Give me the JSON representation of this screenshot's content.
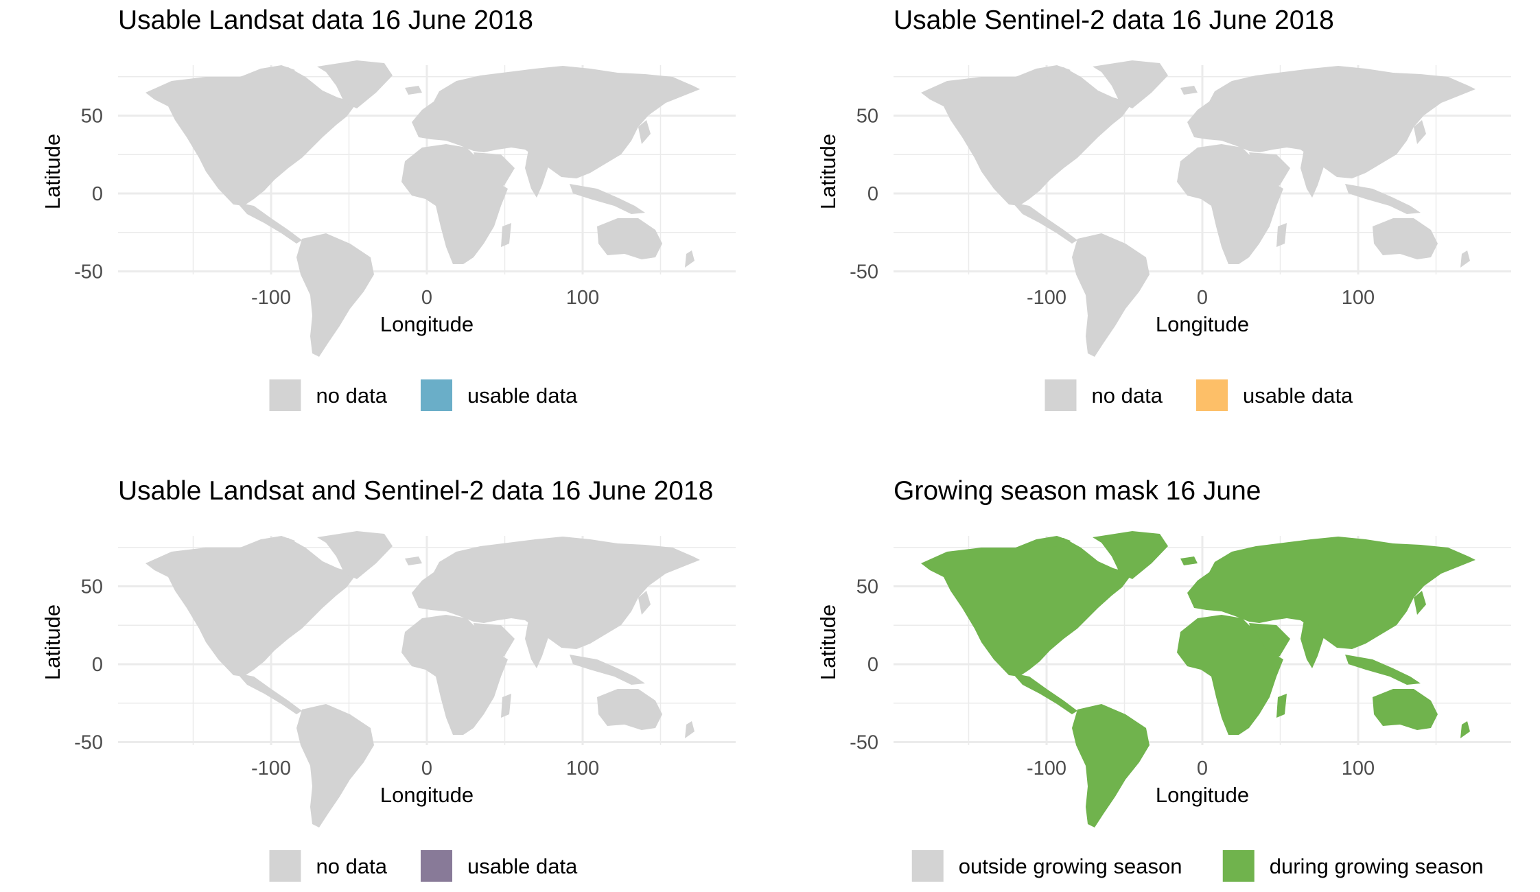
{
  "colors": {
    "no_data": "#d3d3d3",
    "landsat": "#6aaec8",
    "sentinel": "#fdbf68",
    "combined": "#887a98",
    "growing": "#70b34d",
    "grid": "#ebebeb"
  },
  "axes": {
    "x_label": "Longitude",
    "y_label": "Latitude",
    "x_ticks": [
      "-100",
      "0",
      "100"
    ],
    "y_ticks": [
      "50",
      "0",
      "-50"
    ]
  },
  "panels": [
    {
      "title": "Usable Landsat data 16 June 2018",
      "legend": [
        "no data",
        "usable data"
      ],
      "highlight": "landsat"
    },
    {
      "title": "Usable Sentinel-2 data 16 June 2018",
      "legend": [
        "no data",
        "usable data"
      ],
      "highlight": "sentinel"
    },
    {
      "title": "Usable Landsat and Sentinel-2 data 16 June 2018",
      "legend": [
        "no data",
        "usable data"
      ],
      "highlight": "combined"
    },
    {
      "title": "Growing season mask 16 June",
      "legend": [
        "outside growing season",
        "during growing season"
      ],
      "highlight": "growing"
    }
  ]
}
